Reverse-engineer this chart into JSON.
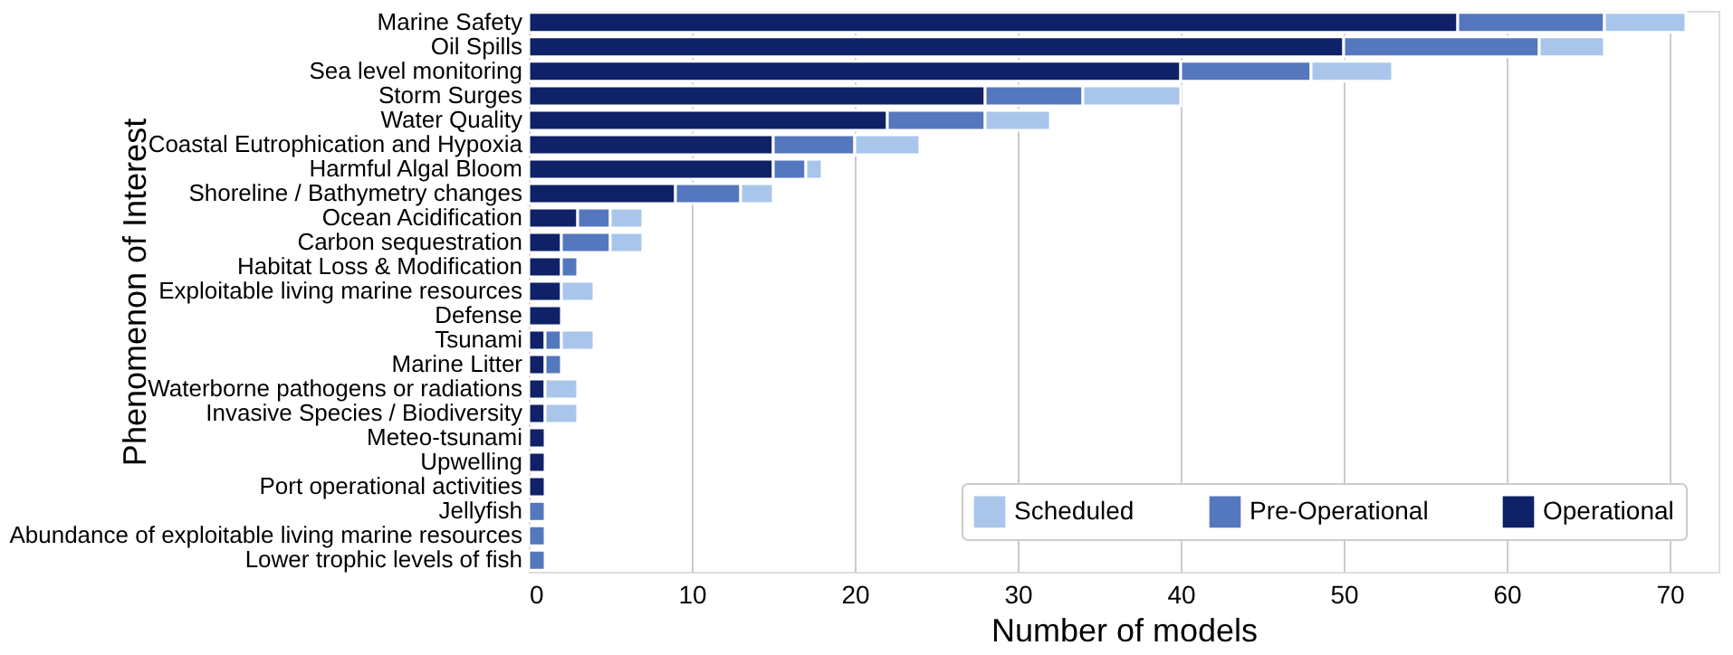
{
  "chart_data": {
    "type": "bar",
    "orientation": "horizontal",
    "stacked": true,
    "categories": [
      "Marine Safety",
      "Oil Spills",
      "Sea level monitoring",
      "Storm Surges",
      "Water Quality",
      "Coastal Eutrophication and Hypoxia",
      "Harmful Algal Bloom",
      "Shoreline / Bathymetry changes",
      "Ocean Acidification",
      "Carbon sequestration",
      "Habitat Loss & Modification",
      "Exploitable living marine resources",
      "Defense",
      "Tsunami",
      "Marine Litter",
      "Waterborne pathogens or radiations",
      "Invasive Species / Biodiversity",
      "Meteo-tsunami",
      "Upwelling",
      "Port operational activities",
      "Jellyfish",
      "Abundance of exploitable living marine resources",
      "Lower trophic levels of fish"
    ],
    "series": [
      {
        "name": "Operational",
        "color": "#0f2167",
        "values": [
          57,
          50,
          40,
          28,
          22,
          15,
          15,
          9,
          3,
          2,
          2,
          2,
          2,
          1,
          1,
          1,
          1,
          1,
          1,
          1,
          0,
          0,
          0
        ]
      },
      {
        "name": "Pre-Operational",
        "color": "#5577bd",
        "values": [
          9,
          12,
          8,
          6,
          6,
          5,
          2,
          4,
          2,
          3,
          1,
          0,
          0,
          1,
          1,
          0,
          0,
          0,
          0,
          0,
          1,
          1,
          1
        ]
      },
      {
        "name": "Scheduled",
        "color": "#a9c6ea",
        "values": [
          5,
          4,
          5,
          6,
          4,
          4,
          1,
          2,
          2,
          2,
          0,
          2,
          0,
          2,
          0,
          2,
          2,
          0,
          0,
          0,
          0,
          0,
          0
        ]
      }
    ],
    "xlim": [
      0,
      73
    ],
    "xticks": [
      0,
      10,
      20,
      30,
      40,
      50,
      60,
      70
    ],
    "xlabel": "Number of models",
    "ylabel": "Phenomenon of Interest",
    "grid": "x",
    "legend": "bottom right"
  }
}
